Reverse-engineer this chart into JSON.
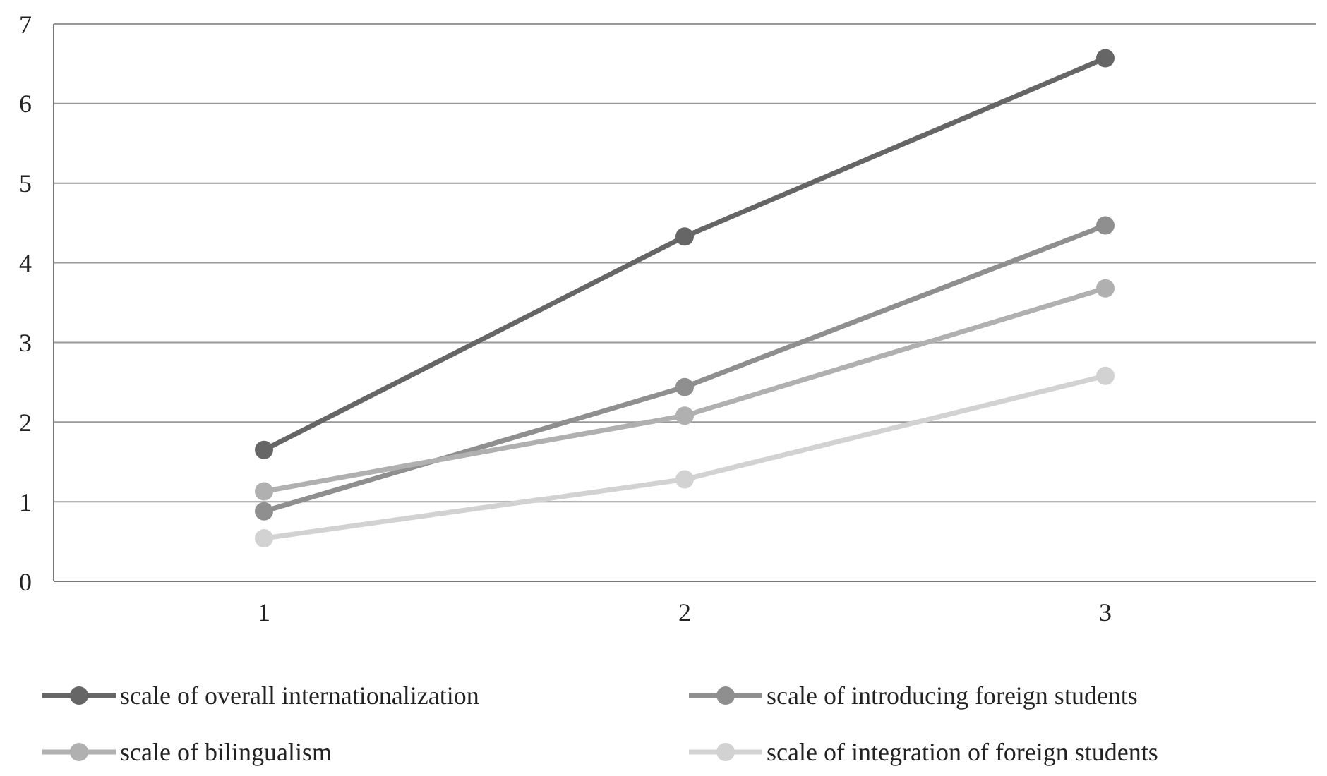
{
  "chart_data": {
    "type": "line",
    "categories": [
      "1",
      "2",
      "3"
    ],
    "ylim": [
      0,
      7
    ],
    "yticks": [
      0,
      1,
      2,
      3,
      4,
      5,
      6,
      7
    ],
    "grid": "y",
    "legend": "bottom",
    "marker": "circle",
    "line_style": "solid",
    "series": [
      {
        "name": "scale of overall internationalization",
        "color": "#666666",
        "values": [
          1.65,
          4.33,
          6.57
        ]
      },
      {
        "name": "scale of introducing foreign students",
        "color": "#8f8f8f",
        "values": [
          0.88,
          2.44,
          4.47
        ]
      },
      {
        "name": "scale of bilingualism",
        "color": "#b0b0b0",
        "values": [
          1.13,
          2.08,
          3.68
        ]
      },
      {
        "name": "scale of integration of foreign students",
        "color": "#d2d2d2",
        "values": [
          0.54,
          1.28,
          2.58
        ]
      }
    ]
  }
}
